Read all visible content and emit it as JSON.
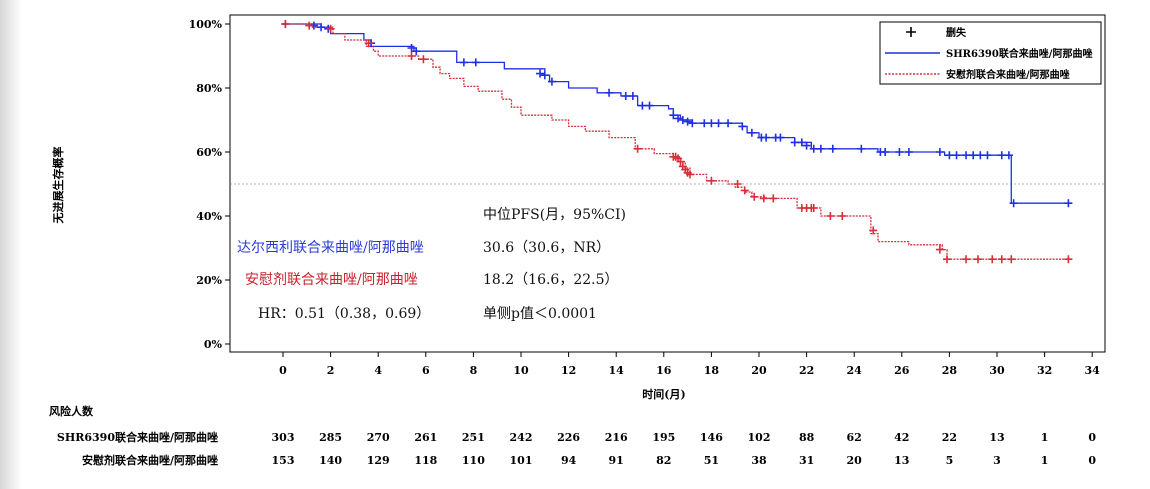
{
  "chart_data": {
    "type": "line",
    "subtype": "kaplan-meier",
    "ylabel": "无进展生存概率",
    "xlabel": "时间(月)",
    "x_ticks": [
      0,
      2,
      4,
      6,
      8,
      10,
      12,
      14,
      16,
      18,
      20,
      22,
      24,
      26,
      28,
      30,
      32,
      34
    ],
    "y_ticks": [
      "0%",
      "20%",
      "40%",
      "60%",
      "80%",
      "100%"
    ],
    "xlim": [
      -2.2,
      34.6
    ],
    "ylim": [
      0,
      1
    ],
    "reference_line_y": 0.5,
    "censor_label": "删失",
    "series": [
      {
        "name": "SHR6390联合来曲唑/阿那曲唑",
        "color": "#1f2fe6",
        "style": "solid",
        "steps": [
          [
            0,
            1.0
          ],
          [
            1.6,
            0.99
          ],
          [
            2.0,
            0.97
          ],
          [
            3.4,
            0.95
          ],
          [
            3.7,
            0.93
          ],
          [
            5.5,
            0.915
          ],
          [
            7.3,
            0.88
          ],
          [
            9.3,
            0.86
          ],
          [
            11.0,
            0.84
          ],
          [
            11.2,
            0.82
          ],
          [
            12.0,
            0.8
          ],
          [
            13.2,
            0.785
          ],
          [
            14.2,
            0.775
          ],
          [
            14.9,
            0.745
          ],
          [
            16.2,
            0.735
          ],
          [
            16.4,
            0.715
          ],
          [
            16.7,
            0.7
          ],
          [
            17.2,
            0.69
          ],
          [
            19.3,
            0.68
          ],
          [
            19.5,
            0.66
          ],
          [
            20.0,
            0.645
          ],
          [
            21.5,
            0.63
          ],
          [
            22.2,
            0.61
          ],
          [
            25.0,
            0.6
          ],
          [
            27.8,
            0.59
          ],
          [
            30.6,
            0.44
          ],
          [
            33.0,
            0.44
          ]
        ],
        "censors": [
          [
            0.1,
            1.0
          ],
          [
            1.3,
            0.995
          ],
          [
            1.6,
            0.99
          ],
          [
            1.9,
            0.985
          ],
          [
            3.7,
            0.94
          ],
          [
            5.4,
            0.925
          ],
          [
            5.6,
            0.915
          ],
          [
            7.6,
            0.88
          ],
          [
            8.1,
            0.88
          ],
          [
            10.8,
            0.845
          ],
          [
            11.0,
            0.84
          ],
          [
            11.3,
            0.82
          ],
          [
            13.7,
            0.785
          ],
          [
            14.4,
            0.775
          ],
          [
            14.7,
            0.775
          ],
          [
            15.1,
            0.745
          ],
          [
            15.4,
            0.745
          ],
          [
            16.4,
            0.715
          ],
          [
            16.6,
            0.705
          ],
          [
            16.8,
            0.7
          ],
          [
            17.0,
            0.695
          ],
          [
            17.2,
            0.69
          ],
          [
            17.7,
            0.69
          ],
          [
            18.0,
            0.69
          ],
          [
            18.3,
            0.69
          ],
          [
            18.7,
            0.69
          ],
          [
            19.3,
            0.68
          ],
          [
            19.7,
            0.66
          ],
          [
            20.1,
            0.645
          ],
          [
            20.3,
            0.645
          ],
          [
            20.7,
            0.645
          ],
          [
            20.9,
            0.645
          ],
          [
            21.5,
            0.63
          ],
          [
            21.8,
            0.63
          ],
          [
            22.0,
            0.62
          ],
          [
            22.3,
            0.61
          ],
          [
            22.6,
            0.61
          ],
          [
            23.1,
            0.61
          ],
          [
            24.3,
            0.61
          ],
          [
            25.1,
            0.6
          ],
          [
            25.3,
            0.6
          ],
          [
            25.9,
            0.6
          ],
          [
            26.3,
            0.6
          ],
          [
            27.6,
            0.6
          ],
          [
            28.0,
            0.59
          ],
          [
            28.3,
            0.59
          ],
          [
            28.7,
            0.59
          ],
          [
            29.0,
            0.59
          ],
          [
            29.3,
            0.59
          ],
          [
            29.6,
            0.59
          ],
          [
            30.2,
            0.59
          ],
          [
            30.5,
            0.59
          ],
          [
            30.7,
            0.44
          ],
          [
            33.0,
            0.44
          ]
        ]
      },
      {
        "name": "安慰剂联合来曲唑/阿那曲唑",
        "color": "#d5303a",
        "style": "dotted",
        "steps": [
          [
            0,
            1.0
          ],
          [
            1.2,
            0.99
          ],
          [
            2.1,
            0.97
          ],
          [
            2.6,
            0.95
          ],
          [
            3.5,
            0.93
          ],
          [
            3.8,
            0.915
          ],
          [
            4.0,
            0.9
          ],
          [
            5.7,
            0.89
          ],
          [
            6.3,
            0.865
          ],
          [
            6.6,
            0.845
          ],
          [
            7.0,
            0.83
          ],
          [
            7.6,
            0.805
          ],
          [
            8.2,
            0.79
          ],
          [
            9.2,
            0.765
          ],
          [
            9.6,
            0.74
          ],
          [
            10.0,
            0.715
          ],
          [
            11.3,
            0.7
          ],
          [
            12.0,
            0.68
          ],
          [
            12.7,
            0.665
          ],
          [
            13.7,
            0.645
          ],
          [
            14.8,
            0.61
          ],
          [
            15.6,
            0.595
          ],
          [
            16.4,
            0.585
          ],
          [
            16.7,
            0.57
          ],
          [
            16.9,
            0.55
          ],
          [
            17.1,
            0.53
          ],
          [
            17.8,
            0.51
          ],
          [
            18.7,
            0.5
          ],
          [
            19.0,
            0.49
          ],
          [
            19.4,
            0.475
          ],
          [
            19.7,
            0.46
          ],
          [
            20.3,
            0.455
          ],
          [
            21.6,
            0.425
          ],
          [
            22.6,
            0.4
          ],
          [
            24.7,
            0.345
          ],
          [
            25.0,
            0.32
          ],
          [
            26.3,
            0.31
          ],
          [
            27.7,
            0.295
          ],
          [
            27.9,
            0.265
          ],
          [
            33.0,
            0.265
          ]
        ],
        "censors": [
          [
            0.1,
            1.0
          ],
          [
            1.1,
            0.995
          ],
          [
            2.0,
            0.985
          ],
          [
            3.6,
            0.94
          ],
          [
            5.4,
            0.9
          ],
          [
            5.9,
            0.89
          ],
          [
            14.9,
            0.61
          ],
          [
            16.4,
            0.585
          ],
          [
            16.5,
            0.585
          ],
          [
            16.6,
            0.58
          ],
          [
            16.7,
            0.57
          ],
          [
            16.8,
            0.555
          ],
          [
            16.9,
            0.545
          ],
          [
            17.0,
            0.535
          ],
          [
            17.1,
            0.53
          ],
          [
            18.0,
            0.51
          ],
          [
            19.1,
            0.5
          ],
          [
            19.4,
            0.48
          ],
          [
            19.8,
            0.46
          ],
          [
            20.2,
            0.455
          ],
          [
            20.6,
            0.455
          ],
          [
            21.8,
            0.425
          ],
          [
            22.0,
            0.425
          ],
          [
            22.2,
            0.425
          ],
          [
            22.3,
            0.425
          ],
          [
            23.0,
            0.4
          ],
          [
            23.5,
            0.4
          ],
          [
            24.8,
            0.355
          ],
          [
            27.6,
            0.295
          ],
          [
            27.9,
            0.265
          ],
          [
            28.7,
            0.265
          ],
          [
            29.2,
            0.265
          ],
          [
            29.8,
            0.265
          ],
          [
            30.2,
            0.265
          ],
          [
            30.6,
            0.265
          ],
          [
            33.0,
            0.265
          ]
        ]
      }
    ],
    "legend": {
      "placement": "top-right",
      "entries": [
        "删失",
        "SHR6390联合来曲唑/阿那曲唑",
        "安慰剂联合来曲唑/阿那曲唑"
      ]
    },
    "annotations": {
      "header": "中位PFS(月，95%CI)",
      "blue_label": "达尔西利联合来曲唑/阿那曲唑",
      "blue_value": "30.6（30.6，NR）",
      "red_label": "安慰剂联合来曲唑/阿那曲唑",
      "red_value": "18.2（16.6，22.5）",
      "hr": "HR：0.51（0.38，0.69）",
      "p": "单侧p值＜0.0001"
    },
    "risk_table": {
      "title": "风险人数",
      "rows": [
        {
          "label": "SHR6390联合来曲唑/阿那曲唑",
          "values": [
            303,
            285,
            270,
            261,
            251,
            242,
            226,
            216,
            195,
            146,
            102,
            88,
            62,
            42,
            22,
            13,
            1,
            0
          ]
        },
        {
          "label": "安慰剂联合来曲唑/阿那曲唑",
          "values": [
            153,
            140,
            129,
            118,
            110,
            101,
            94,
            91,
            82,
            51,
            38,
            31,
            20,
            13,
            5,
            3,
            1,
            0
          ]
        }
      ]
    }
  }
}
